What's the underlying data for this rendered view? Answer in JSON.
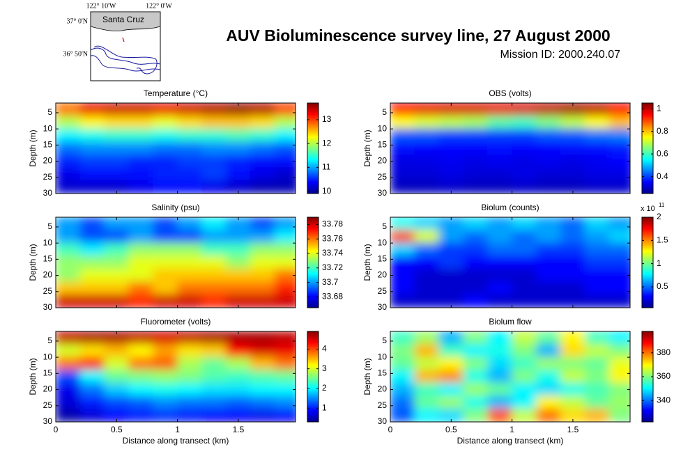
{
  "header": {
    "title": "AUV Bioluminescence survey line, 27 August 2000",
    "subtitle": "Mission ID: 2000.240.07"
  },
  "map": {
    "lon_labels": [
      "122° 10'W",
      "122° 0'W"
    ],
    "lat_labels": [
      "37° 0'N",
      "36° 50'N"
    ],
    "place": "Santa Cruz"
  },
  "chart_data": [
    {
      "type": "heatmap",
      "title": "Temperature (°C)",
      "y_label": "Depth (m)",
      "colormap": "jet",
      "x": [
        0.1,
        0.3,
        0.5,
        0.7,
        0.9,
        1.1,
        1.3,
        1.5,
        1.7,
        1.9
      ],
      "y": [
        4,
        8,
        12,
        16,
        20,
        24,
        28
      ],
      "z": [
        [
          12.8,
          13.3,
          13.4,
          13.4,
          13.3,
          13.4,
          13.5,
          13.6,
          13.5,
          13.0
        ],
        [
          12.0,
          12.3,
          12.4,
          12.4,
          12.2,
          12.4,
          12.5,
          12.5,
          12.4,
          12.0
        ],
        [
          11.3,
          11.4,
          11.5,
          11.5,
          11.4,
          11.5,
          11.5,
          11.6,
          11.5,
          11.3
        ],
        [
          10.8,
          10.9,
          10.9,
          10.9,
          10.8,
          10.8,
          10.9,
          10.9,
          10.8,
          10.7
        ],
        [
          10.5,
          10.6,
          10.6,
          10.5,
          10.5,
          10.6,
          10.6,
          10.5,
          10.4,
          10.4
        ],
        [
          10.3,
          10.4,
          10.4,
          10.4,
          10.5,
          10.5,
          10.6,
          10.4,
          10.3,
          10.2
        ],
        [
          10.2,
          10.2,
          10.2,
          10.3,
          10.4,
          10.4,
          10.3,
          10.2,
          10.1,
          10.1
        ]
      ],
      "xlim": [
        0,
        1.97
      ],
      "xticks": [
        0,
        0.5,
        1,
        1.5
      ],
      "xtick_labels": false,
      "ylim": [
        2,
        30
      ],
      "y_reversed": true,
      "yticks": [
        5,
        10,
        15,
        20,
        25,
        30
      ],
      "colorbar_lim": [
        9.9,
        13.7
      ],
      "colorbar_ticks": [
        10,
        11,
        12,
        13
      ]
    },
    {
      "type": "heatmap",
      "title": "OBS (volts)",
      "y_label": "Depth (m)",
      "colormap": "jet",
      "x": [
        0.1,
        0.3,
        0.5,
        0.7,
        0.9,
        1.1,
        1.3,
        1.5,
        1.7,
        1.9
      ],
      "y": [
        4,
        8,
        12,
        16,
        20,
        24,
        28
      ],
      "z": [
        [
          0.95,
          0.97,
          0.98,
          0.98,
          0.97,
          0.98,
          1.0,
          1.02,
          1.0,
          0.95
        ],
        [
          0.75,
          0.72,
          0.7,
          0.68,
          0.62,
          0.6,
          0.65,
          0.7,
          0.75,
          0.8
        ],
        [
          0.42,
          0.42,
          0.4,
          0.4,
          0.4,
          0.4,
          0.42,
          0.42,
          0.44,
          0.45
        ],
        [
          0.36,
          0.35,
          0.35,
          0.35,
          0.36,
          0.35,
          0.35,
          0.36,
          0.36,
          0.37
        ],
        [
          0.33,
          0.33,
          0.34,
          0.33,
          0.34,
          0.33,
          0.34,
          0.33,
          0.34,
          0.35
        ],
        [
          0.32,
          0.32,
          0.33,
          0.32,
          0.32,
          0.33,
          0.32,
          0.32,
          0.33,
          0.33
        ],
        [
          0.3,
          0.3,
          0.31,
          0.3,
          0.3,
          0.31,
          0.3,
          0.3,
          0.31,
          0.31
        ]
      ],
      "xlim": [
        0,
        1.97
      ],
      "xticks": [
        0,
        0.5,
        1,
        1.5
      ],
      "xtick_labels": false,
      "ylim": [
        2,
        30
      ],
      "y_reversed": true,
      "yticks": [
        5,
        10,
        15,
        20,
        25,
        30
      ],
      "colorbar_lim": [
        0.25,
        1.05
      ],
      "colorbar_ticks": [
        0.4,
        0.6,
        0.8,
        1
      ]
    },
    {
      "type": "heatmap",
      "title": "Salinity (psu)",
      "y_label": "Depth (m)",
      "colormap": "jet",
      "x": [
        0.1,
        0.3,
        0.5,
        0.7,
        0.9,
        1.1,
        1.3,
        1.5,
        1.7,
        1.9
      ],
      "y": [
        4,
        8,
        12,
        16,
        20,
        24,
        28
      ],
      "z": [
        [
          33.7,
          33.69,
          33.7,
          33.7,
          33.69,
          33.7,
          33.71,
          33.7,
          33.69,
          33.7
        ],
        [
          33.7,
          33.69,
          33.69,
          33.7,
          33.69,
          33.69,
          33.7,
          33.7,
          33.7,
          33.71
        ],
        [
          33.72,
          33.71,
          33.72,
          33.73,
          33.73,
          33.73,
          33.72,
          33.72,
          33.73,
          33.73
        ],
        [
          33.73,
          33.73,
          33.73,
          33.74,
          33.74,
          33.74,
          33.74,
          33.73,
          33.74,
          33.74
        ],
        [
          33.73,
          33.74,
          33.74,
          33.74,
          33.75,
          33.75,
          33.75,
          33.75,
          33.75,
          33.76
        ],
        [
          33.75,
          33.75,
          33.75,
          33.76,
          33.75,
          33.76,
          33.76,
          33.76,
          33.76,
          33.77
        ],
        [
          33.78,
          33.78,
          33.78,
          33.77,
          33.78,
          33.78,
          33.77,
          33.78,
          33.78,
          33.78
        ]
      ],
      "xlim": [
        0,
        1.97
      ],
      "xticks": [
        0,
        0.5,
        1,
        1.5
      ],
      "xtick_labels": false,
      "ylim": [
        2,
        30
      ],
      "y_reversed": true,
      "yticks": [
        5,
        10,
        15,
        20,
        25,
        30
      ],
      "colorbar_lim": [
        33.665,
        33.79
      ],
      "colorbar_ticks": [
        33.68,
        33.7,
        33.72,
        33.74,
        33.76,
        33.78
      ]
    },
    {
      "type": "heatmap",
      "title": "Biolum (counts)",
      "y_label": "Depth (m)",
      "colormap": "jet",
      "x": [
        0.1,
        0.3,
        0.5,
        0.7,
        0.9,
        1.1,
        1.3,
        1.5,
        1.7,
        1.9
      ],
      "y": [
        4,
        8,
        12,
        16,
        20,
        24,
        28
      ],
      "z": [
        [
          0.8,
          0.7,
          0.6,
          0.7,
          0.6,
          0.7,
          0.6,
          0.5,
          0.7,
          0.6
        ],
        [
          1.6,
          1.2,
          0.6,
          0.5,
          0.6,
          0.5,
          0.6,
          0.5,
          0.6,
          0.7
        ],
        [
          0.7,
          0.5,
          0.4,
          0.4,
          0.5,
          0.5,
          0.4,
          0.4,
          0.5,
          0.5
        ],
        [
          0.3,
          0.3,
          0.4,
          0.3,
          0.3,
          0.3,
          0.3,
          0.3,
          0.4,
          0.4
        ],
        [
          0.3,
          0.2,
          0.2,
          0.2,
          0.2,
          0.2,
          0.3,
          0.3,
          0.3,
          0.3
        ],
        [
          0.3,
          0.2,
          0.2,
          0.2,
          0.3,
          0.2,
          0.2,
          0.2,
          0.3,
          0.3
        ],
        [
          0.2,
          0.2,
          0.2,
          0.3,
          0.2,
          0.2,
          0.2,
          0.2,
          0.2,
          0.2
        ]
      ],
      "xlim": [
        0,
        1.97
      ],
      "xticks": [
        0,
        0.5,
        1,
        1.5
      ],
      "xtick_labels": false,
      "ylim": [
        2,
        30
      ],
      "y_reversed": true,
      "yticks": [
        5,
        10,
        15,
        20,
        25,
        30
      ],
      "colorbar_lim": [
        0.05,
        2
      ],
      "colorbar_ticks": [
        0.5,
        1,
        1.5,
        2
      ],
      "colorbar_multiplier": "x 10",
      "colorbar_exponent": "11"
    },
    {
      "type": "heatmap",
      "title": "Fluorometer (volts)",
      "y_label": "Depth (m)",
      "x_label": "Distance along transect (km)",
      "colormap": "jet",
      "x": [
        0.1,
        0.3,
        0.5,
        0.7,
        0.9,
        1.1,
        1.3,
        1.5,
        1.7,
        1.9
      ],
      "y": [
        4,
        8,
        12,
        16,
        20,
        24,
        28
      ],
      "z": [
        [
          4.6,
          4.7,
          4.7,
          4.6,
          4.5,
          4.6,
          4.7,
          4.7,
          4.7,
          4.6
        ],
        [
          3.0,
          3.3,
          3.5,
          3.2,
          3.6,
          3.3,
          3.4,
          4.3,
          4.5,
          4.4
        ],
        [
          3.8,
          4.2,
          3.0,
          3.8,
          3.9,
          2.8,
          2.5,
          2.8,
          3.5,
          3.8
        ],
        [
          1.2,
          2.0,
          2.5,
          2.6,
          2.7,
          2.6,
          2.4,
          2.3,
          2.4,
          2.5
        ],
        [
          0.8,
          1.4,
          1.8,
          2.0,
          2.1,
          2.0,
          1.9,
          1.9,
          2.0,
          2.0
        ],
        [
          0.7,
          1.0,
          1.2,
          1.3,
          1.5,
          1.4,
          1.4,
          1.3,
          1.4,
          1.5
        ],
        [
          0.5,
          0.7,
          0.9,
          1.0,
          1.1,
          1.0,
          0.9,
          0.9,
          0.8,
          0.9
        ]
      ],
      "xlim": [
        0,
        1.97
      ],
      "xticks": [
        0,
        0.5,
        1,
        1.5
      ],
      "xtick_labels": true,
      "ylim": [
        2,
        30
      ],
      "y_reversed": true,
      "yticks": [
        5,
        10,
        15,
        20,
        25,
        30
      ],
      "colorbar_lim": [
        0.3,
        4.9
      ],
      "colorbar_ticks": [
        1,
        2,
        3,
        4
      ]
    },
    {
      "type": "heatmap",
      "title": "Biolum flow",
      "y_label": "Depth (m)",
      "x_label": "Distance along transect (km)",
      "colormap": "jet",
      "x": [
        0.1,
        0.3,
        0.5,
        0.7,
        0.9,
        1.1,
        1.3,
        1.5,
        1.7,
        1.9
      ],
      "y": [
        4,
        8,
        12,
        16,
        20,
        24,
        28
      ],
      "z": [
        [
          355,
          362,
          345,
          360,
          350,
          365,
          358,
          370,
          355,
          350
        ],
        [
          360,
          375,
          355,
          350,
          352,
          360,
          345,
          372,
          365,
          360
        ],
        [
          358,
          365,
          370,
          360,
          348,
          355,
          362,
          360,
          358,
          368
        ],
        [
          350,
          375,
          378,
          352,
          345,
          360,
          352,
          365,
          360,
          370
        ],
        [
          345,
          355,
          350,
          362,
          358,
          350,
          348,
          352,
          356,
          360
        ],
        [
          340,
          358,
          362,
          352,
          345,
          350,
          370,
          365,
          358,
          362
        ],
        [
          338,
          350,
          348,
          360,
          382,
          365,
          380,
          372,
          375,
          360
        ]
      ],
      "xlim": [
        0,
        1.97
      ],
      "xticks": [
        0,
        0.5,
        1,
        1.5
      ],
      "xtick_labels": true,
      "ylim": [
        2,
        30
      ],
      "y_reversed": true,
      "yticks": [
        5,
        10,
        15,
        20,
        25,
        30
      ],
      "colorbar_lim": [
        322,
        398
      ],
      "colorbar_ticks": [
        340,
        360,
        380
      ]
    }
  ]
}
